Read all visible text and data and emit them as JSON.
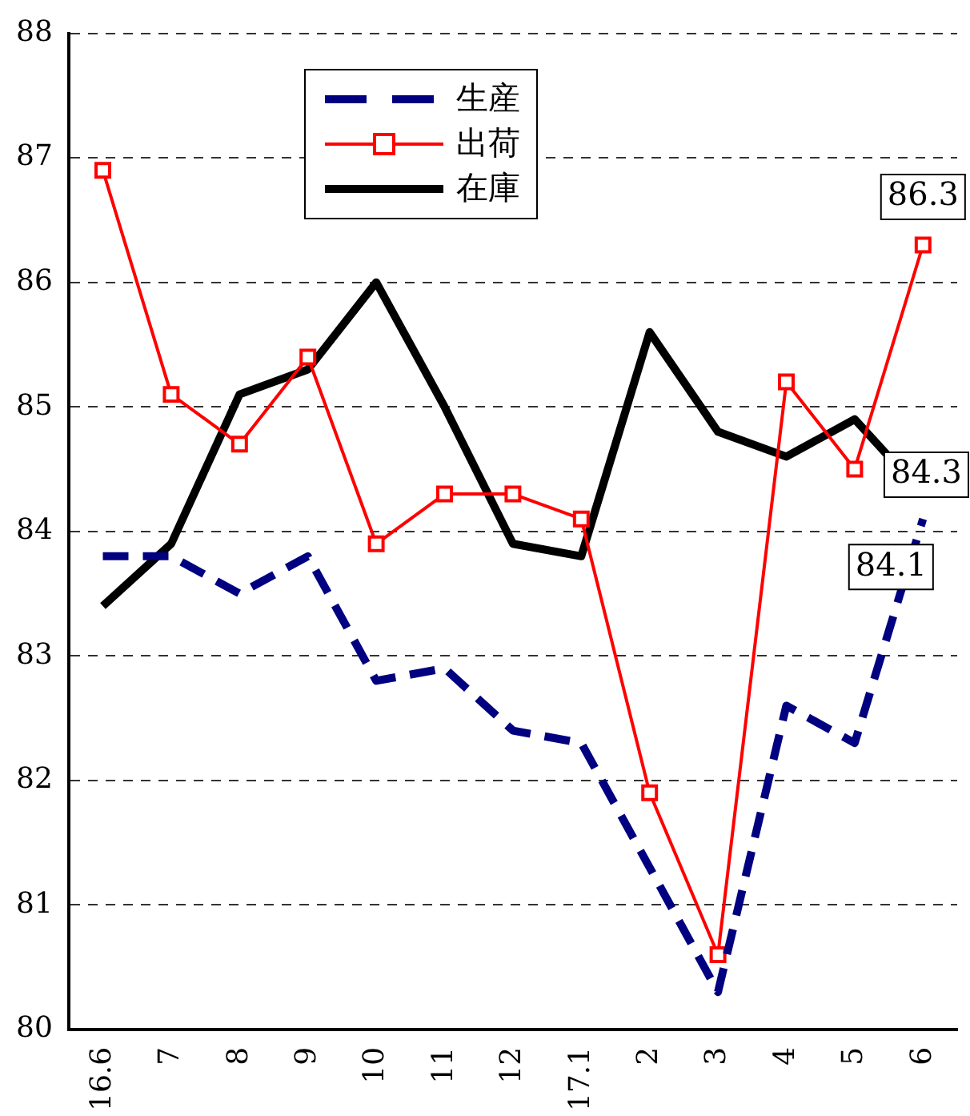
{
  "chart_data": {
    "type": "line",
    "categories": [
      "16.6",
      "7",
      "8",
      "9",
      "10",
      "11",
      "12",
      "17.1",
      "2",
      "3",
      "4",
      "5",
      "6"
    ],
    "series": [
      {
        "name": "生産",
        "color": "#000080",
        "line_style": "dashed",
        "marker": "none",
        "values": [
          83.8,
          83.8,
          83.5,
          83.8,
          82.8,
          82.9,
          82.4,
          82.3,
          81.3,
          80.3,
          82.6,
          82.3,
          84.1
        ],
        "value_labels": [
          null,
          null,
          null,
          null,
          null,
          null,
          null,
          null,
          null,
          null,
          null,
          null,
          "84.1"
        ]
      },
      {
        "name": "出荷",
        "color": "#ff0000",
        "line_style": "solid",
        "marker": "square",
        "values": [
          86.9,
          85.1,
          84.7,
          85.4,
          83.9,
          84.3,
          84.3,
          84.1,
          81.9,
          80.6,
          85.2,
          84.5,
          86.3
        ],
        "value_labels": [
          null,
          null,
          null,
          null,
          null,
          null,
          null,
          null,
          null,
          null,
          null,
          null,
          "86.3"
        ]
      },
      {
        "name": "在庫",
        "color": "#000000",
        "line_style": "solid",
        "marker": "none",
        "values": [
          83.4,
          83.9,
          85.1,
          85.3,
          86.0,
          85.0,
          83.9,
          83.8,
          85.6,
          84.8,
          84.6,
          84.9,
          84.3
        ],
        "value_labels": [
          null,
          null,
          null,
          null,
          null,
          null,
          null,
          null,
          null,
          null,
          null,
          null,
          "84.3"
        ]
      }
    ],
    "ylim": [
      80,
      88
    ],
    "yticks": [
      80,
      81,
      82,
      83,
      84,
      85,
      86,
      87,
      88
    ],
    "grid": "y",
    "legend": "top"
  }
}
